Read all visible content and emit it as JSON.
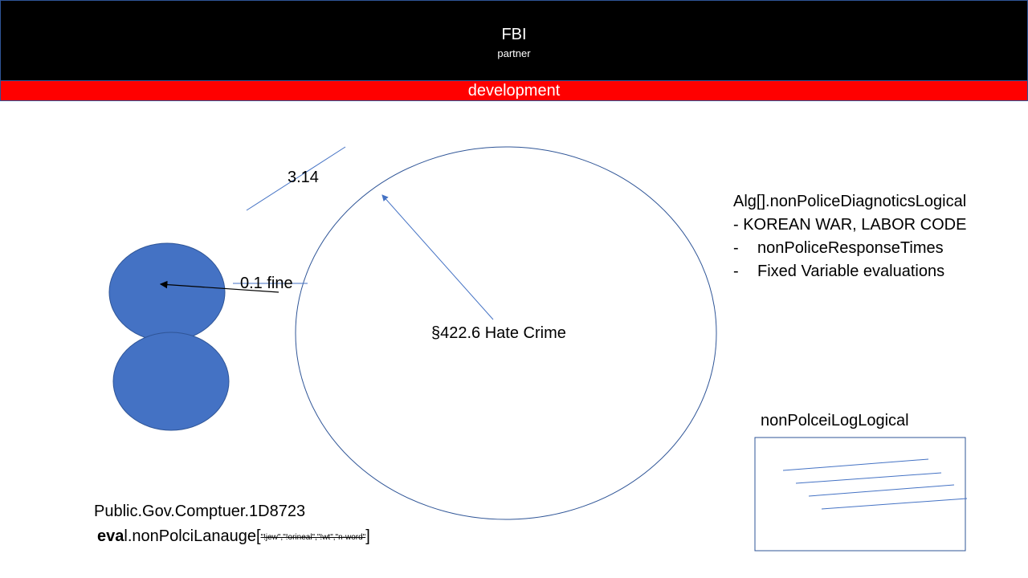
{
  "header": {
    "title": "FBI",
    "subtitle": "partner"
  },
  "band": {
    "label": "development"
  },
  "diagram": {
    "pi_label": "3.14",
    "fine_label": "0.1 fine",
    "center_label": "§422.6 Hate Crime",
    "alg_title": "Alg[].nonPoliceDiagnoticsLogical",
    "alg_items": [
      " - KOREAN WAR, LABOR CODE",
      "nonPoliceResponseTimes",
      "Fixed Variable evaluations"
    ],
    "alg_dash": "-",
    "log_title": "nonPolceiLogLogical",
    "code_line1": "Public.Gov.Comptuer.1D8723",
    "code_line2_bold": "eva",
    "code_line2_rest": "l.nonPolciLanauge",
    "code_open_bracket": "[",
    "code_struck": "\"!jew\",\"!orineal\",\"!wt\",\"n-word\"",
    "code_close_bracket": "]"
  },
  "colors": {
    "header_bg": "#000000",
    "band_bg": "#ff0000",
    "circle_fill": "#4472c4",
    "line_blue": "#4472c4",
    "outline": "#2f5597"
  }
}
